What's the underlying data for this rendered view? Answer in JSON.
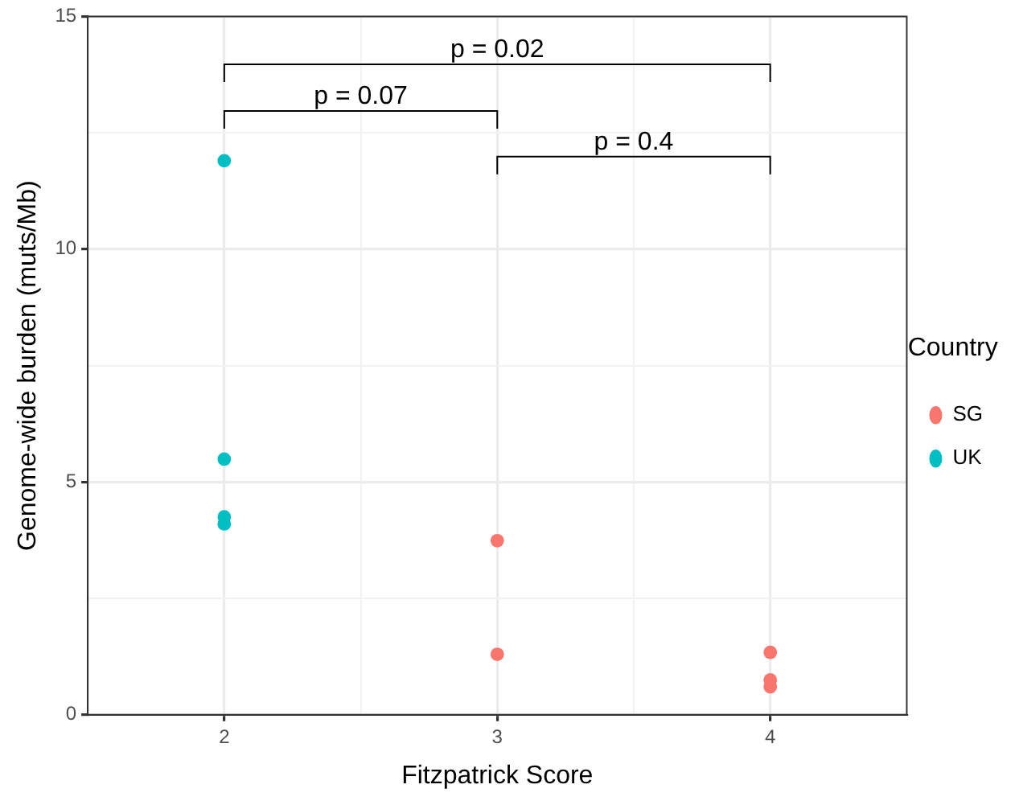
{
  "chart_data": {
    "type": "scatter",
    "xlabel": "Fitzpatrick Score",
    "ylabel": "Genome-wide burden (muts/Mb)",
    "legend_title": "Country",
    "legend": "right",
    "grid": true,
    "marker": "circle",
    "xlim": [
      1.5,
      4.5
    ],
    "xticks": [
      2,
      {
        "value": 2.5,
        "label": null
      },
      3,
      {
        "value": 3.5,
        "label": null
      },
      4
    ],
    "ylim": [
      0,
      15
    ],
    "yticks": [
      0,
      {
        "value": 2.5,
        "label": null
      },
      5,
      {
        "value": 7.5,
        "label": null
      },
      10,
      {
        "value": 12.5,
        "label": null
      },
      15
    ],
    "series": [
      {
        "name": "SG",
        "color": "#f8766d",
        "x": [
          3,
          3,
          4,
          4,
          4
        ],
        "values": [
          3.74,
          1.3,
          1.34,
          0.75,
          0.6
        ]
      },
      {
        "name": "UK",
        "color": "#00bfc4",
        "x": [
          2,
          2,
          2,
          2
        ],
        "values": [
          11.9,
          5.49,
          4.25,
          4.1
        ]
      }
    ],
    "annotations": [
      "p = 0.02",
      "p = 0.07",
      "p = 0.4"
    ]
  }
}
